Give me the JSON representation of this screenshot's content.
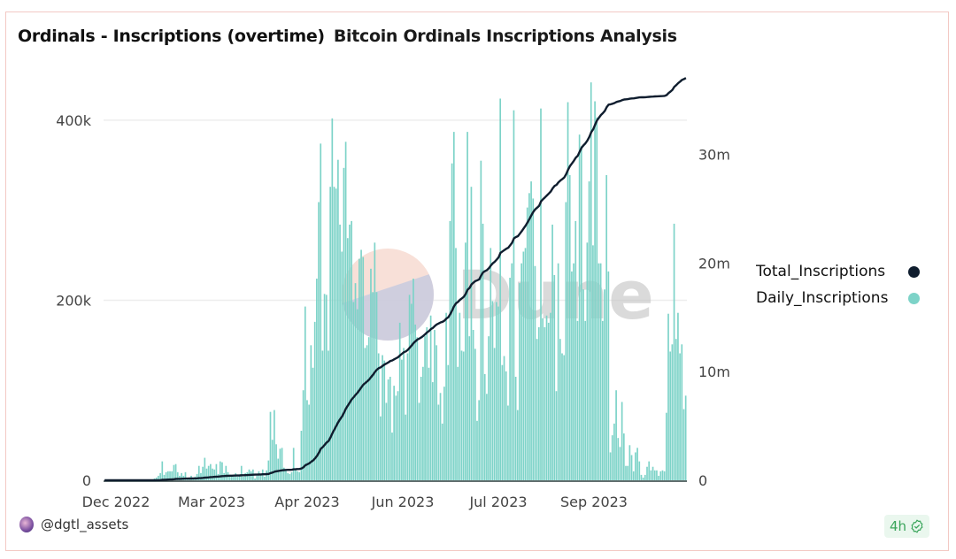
{
  "header": {
    "title": "Ordinals - Inscriptions (overtime)",
    "subtitle": "Bitcoin Ordinals Inscriptions Analysis"
  },
  "footer": {
    "author": "@dgtl_assets",
    "freshness": "4h",
    "freshness_icon": "check-badge-icon"
  },
  "watermark": "Dune",
  "chart_data": {
    "type": "bar+line",
    "xlim": [
      "2022-12-14",
      "2023-10-19"
    ],
    "x_tick_labels": [
      "Dec 2022",
      "Mar 2023",
      "Apr 2023",
      "Jun 2023",
      "Jul 2023",
      "Sep 2023"
    ],
    "y_left": {
      "ticks": [
        "0",
        "200k",
        "400k"
      ],
      "tick_values": [
        0,
        200000,
        400000
      ],
      "ylim": [
        0,
        450000
      ]
    },
    "y_right": {
      "ticks": [
        "0",
        "10m",
        "20m",
        "30m"
      ],
      "tick_values": [
        0,
        10000000,
        20000000,
        30000000
      ],
      "ylim": [
        0,
        37300000
      ]
    },
    "grid": true,
    "legend_position": "right",
    "colors": {
      "Total_Inscriptions": "#0f1d2e",
      "Daily_Inscriptions": "#7dd3c8"
    },
    "series": [
      {
        "name": "Total_Inscriptions",
        "type": "line",
        "axis": "right",
        "note_values": "cumulative sum of Daily_Inscriptions"
      },
      {
        "name": "Daily_Inscriptions",
        "type": "bar",
        "axis": "left",
        "unit": "thousands",
        "values": [
          0,
          0,
          0,
          0,
          0,
          0,
          0,
          0,
          0,
          0,
          0,
          0,
          0,
          0,
          0,
          0,
          0,
          0,
          0,
          0,
          0,
          0,
          0,
          0,
          0,
          0,
          2,
          3,
          5,
          8,
          21,
          6,
          9,
          10,
          10,
          10,
          17,
          18,
          9,
          5,
          8,
          5,
          9,
          3,
          2,
          5,
          3,
          4,
          7,
          16,
          8,
          15,
          25,
          13,
          16,
          18,
          13,
          12,
          18,
          7,
          21,
          20,
          8,
          16,
          9,
          6,
          4,
          4,
          8,
          4,
          6,
          16,
          4,
          8,
          9,
          12,
          10,
          12,
          2,
          5,
          10,
          6,
          12,
          4,
          11,
          22,
          76,
          45,
          78,
          40,
          24,
          35,
          36,
          14,
          12,
          8,
          7,
          9,
          36,
          12,
          10,
          9,
          55,
          100,
          193,
          89,
          84,
          150,
          125,
          176,
          224,
          309,
          374,
          144,
          207,
          206,
          144,
          326,
          402,
          326,
          324,
          356,
          284,
          254,
          347,
          376,
          269,
          284,
          288,
          198,
          219,
          190,
          246,
          256,
          248,
          147,
          150,
          159,
          235,
          209,
          264,
          209,
          141,
          71,
          139,
          133,
          86,
          112,
          115,
          53,
          105,
          94,
          99,
          175,
          134,
          147,
          73,
          141,
          206,
          196,
          224,
          173,
          159,
          86,
          115,
          126,
          160,
          170,
          125,
          183,
          109,
          167,
          150,
          84,
          97,
          63,
          104,
          186,
          128,
          288,
          352,
          387,
          258,
          126,
          186,
          144,
          143,
          264,
          387,
          160,
          326,
          167,
          146,
          66,
          89,
          355,
          285,
          118,
          96,
          160,
          258,
          199,
          147,
          198,
          193,
          424,
          128,
          138,
          121,
          83,
          225,
          241,
          411,
          115,
          78,
          219,
          241,
          254,
          258,
          303,
          319,
          332,
          313,
          238,
          157,
          170,
          413,
          180,
          170,
          183,
          175,
          186,
          284,
          228,
          99,
          241,
          157,
          141,
          139,
          309,
          420,
          339,
          232,
          241,
          288,
          177,
          384,
          371,
          212,
          177,
          264,
          332,
          442,
          261,
          421,
          403,
          241,
          241,
          177,
          212,
          339,
          232,
          31,
          50,
          63,
          100,
          47,
          37,
          87,
          52,
          16,
          16,
          39,
          28,
          10,
          31,
          36,
          21,
          6,
          3,
          6,
          15,
          21,
          11,
          15,
          11,
          11,
          5,
          10,
          11,
          10,
          75,
          185,
          143,
          151,
          285,
          157,
          186,
          141,
          151,
          79,
          94
        ]
      }
    ]
  }
}
